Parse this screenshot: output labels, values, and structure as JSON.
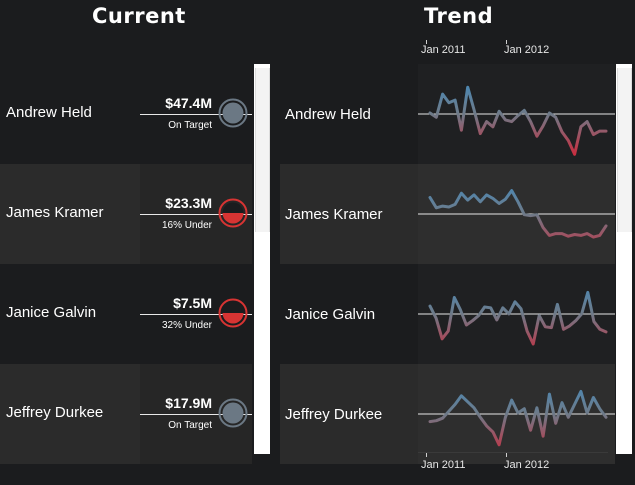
{
  "headers": {
    "current": "Current",
    "trend": "Trend"
  },
  "axis": {
    "labels": [
      "Jan 2011",
      "Jan 2012"
    ]
  },
  "people": [
    {
      "name": "Andrew Held",
      "value": "$47.4M",
      "status": "On Target",
      "gauge": "on-target",
      "fill": 0
    },
    {
      "name": "James Kramer",
      "value": "$23.3M",
      "status": "16% Under",
      "gauge": "under",
      "fill": 0.16
    },
    {
      "name": "Janice Galvin",
      "value": "$7.5M",
      "status": "32% Under",
      "gauge": "under",
      "fill": 0.32
    },
    {
      "name": "Jeffrey Durkee",
      "value": "$17.9M",
      "status": "On Target",
      "gauge": "on-target",
      "fill": 0
    }
  ],
  "trends": [
    {
      "values": [
        50,
        45,
        72,
        62,
        65,
        30,
        80,
        54,
        26,
        40,
        34,
        52,
        42,
        40,
        47,
        53,
        40,
        23,
        35,
        50,
        45,
        28,
        18,
        2,
        34,
        40,
        25,
        29,
        29
      ]
    },
    {
      "values": [
        68,
        56,
        58,
        57,
        60,
        73,
        65,
        71,
        63,
        71,
        67,
        61,
        66,
        76,
        63,
        48,
        47,
        48,
        33,
        24,
        26,
        26,
        23,
        25,
        24,
        26,
        22,
        24,
        35
      ]
    },
    {
      "values": [
        58,
        44,
        20,
        29,
        68,
        54,
        36,
        41,
        47,
        57,
        56,
        42,
        56,
        49,
        63,
        55,
        29,
        14,
        47,
        34,
        33,
        60,
        31,
        35,
        41,
        49,
        74,
        40,
        31,
        28
      ]
    },
    {
      "values": [
        40,
        41,
        44,
        52,
        60,
        70,
        63,
        56,
        45,
        35,
        28,
        13,
        45,
        65,
        50,
        55,
        30,
        56,
        23,
        72,
        38,
        62,
        45,
        60,
        75,
        50,
        68,
        55,
        45
      ]
    }
  ],
  "colors": {
    "on_target": "#6b7884",
    "under": "#d73433",
    "spark_high": "#3a8fc9",
    "spark_low": "#d0283a"
  }
}
